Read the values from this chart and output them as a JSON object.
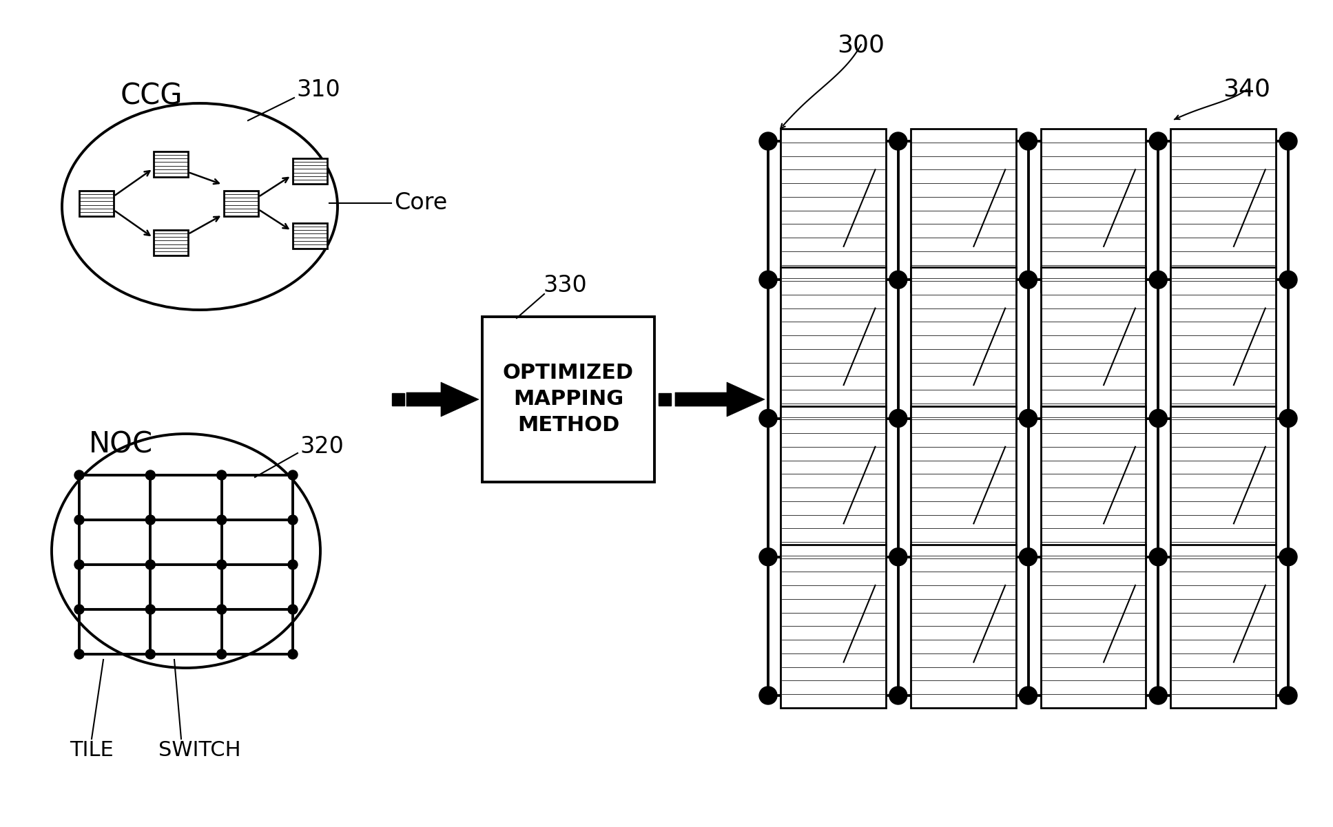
{
  "bg_color": "#ffffff",
  "line_color": "#000000",
  "ccg_label": "CCG",
  "noc_label": "NOC",
  "core_label": "Core",
  "tile_label": "TILE",
  "switch_label": "SWITCH",
  "mapping_box_lines": [
    "OPTIMIZED",
    "MAPPING",
    "METHOD"
  ],
  "ref_300": "300",
  "ref_310": "310",
  "ref_320": "320",
  "ref_330": "330",
  "ref_340": "340",
  "figw": 19.35,
  "figh": 12.01,
  "dpi": 100
}
